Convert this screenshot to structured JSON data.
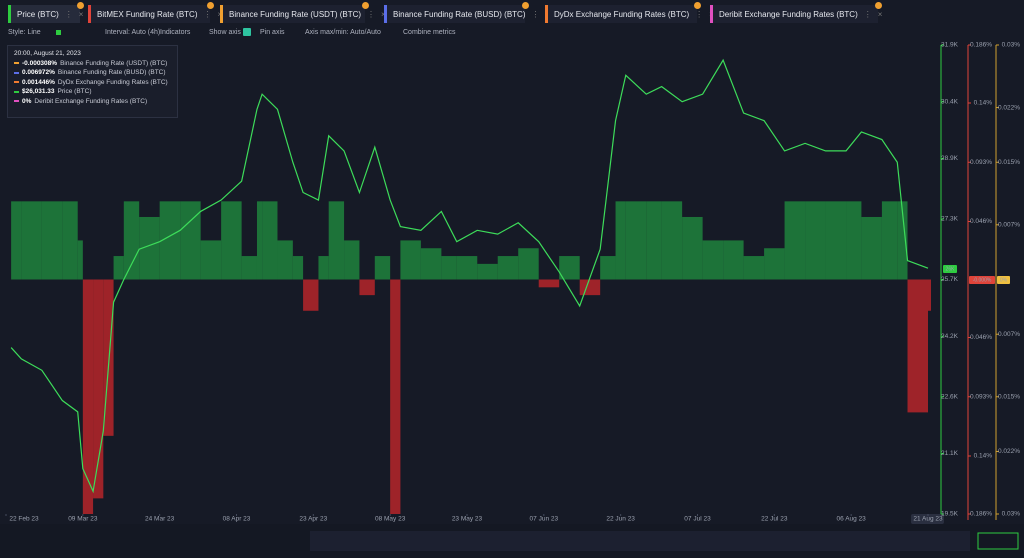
{
  "tabs": [
    {
      "label": "Price (BTC)",
      "color": "#2ecc40"
    },
    {
      "label": "BitMEX Funding Rate (BTC)",
      "color": "#e0443a"
    },
    {
      "label": "Binance Funding Rate (USDT) (BTC)",
      "color": "#f0a030"
    },
    {
      "label": "Binance Funding Rate (BUSD) (BTC)",
      "color": "#5b6ee8"
    },
    {
      "label": "DyDx Exchange Funding Rates (BTC)",
      "color": "#f07a30"
    },
    {
      "label": "Deribit Exchange Funding Rates (BTC)",
      "color": "#e050c0"
    }
  ],
  "toolbar": {
    "style": "Style: Line",
    "interval": "Interval: Auto (4h)",
    "indicators": "Indicators",
    "show_axis": "Show axis",
    "pin_axis": "Pin axis",
    "axis_range": "Axis max/min: Auto/Auto",
    "combine": "Combine metrics"
  },
  "tooltip": {
    "time": "20:00, August 21, 2023",
    "rows": [
      {
        "value": "-0.000308%",
        "name": "Binance Funding Rate (USDT) (BTC)",
        "color": "#f0a030"
      },
      {
        "value": "0.006972%",
        "name": "Binance Funding Rate (BUSD) (BTC)",
        "color": "#5b6ee8"
      },
      {
        "value": "0.001446%",
        "name": "DyDx Exchange Funding Rates (BTC)",
        "color": "#f07a30"
      },
      {
        "value": "$26,031.33",
        "name": "Price (BTC)",
        "color": "#2ecc40"
      },
      {
        "value": "0%",
        "name": "Deribit Exchange Funding Rates (BTC)",
        "color": "#e050c0"
      }
    ]
  },
  "badges": [
    {
      "label": "26K",
      "color": "#2ecc40"
    },
    {
      "label": "-0.000%",
      "color": "#e0443a"
    },
    {
      "label": "0%",
      "color": "#f0c040"
    }
  ],
  "chart_data": {
    "type": "line",
    "x": [
      "2023-02-23",
      "2023-02-25",
      "2023-03-01",
      "2023-03-05",
      "2023-03-08",
      "2023-03-09",
      "2023-03-11",
      "2023-03-13",
      "2023-03-15",
      "2023-03-17",
      "2023-03-20",
      "2023-03-24",
      "2023-03-28",
      "2023-04-01",
      "2023-04-05",
      "2023-04-09",
      "2023-04-12",
      "2023-04-13",
      "2023-04-16",
      "2023-04-19",
      "2023-04-21",
      "2023-04-24",
      "2023-04-26",
      "2023-04-29",
      "2023-05-02",
      "2023-05-05",
      "2023-05-08",
      "2023-05-10",
      "2023-05-14",
      "2023-05-18",
      "2023-05-21",
      "2023-05-25",
      "2023-05-29",
      "2023-06-02",
      "2023-06-06",
      "2023-06-10",
      "2023-06-14",
      "2023-06-18",
      "2023-06-21",
      "2023-06-23",
      "2023-06-27",
      "2023-06-30",
      "2023-07-04",
      "2023-07-08",
      "2023-07-12",
      "2023-07-16",
      "2023-07-20",
      "2023-07-24",
      "2023-07-28",
      "2023-08-01",
      "2023-08-05",
      "2023-08-08",
      "2023-08-12",
      "2023-08-15",
      "2023-08-17",
      "2023-08-21"
    ],
    "xlim": [
      "2023-02-22",
      "2023-08-21"
    ],
    "xticks": [
      {
        "value": "2023-02-22",
        "label": "22 Feb 23"
      },
      {
        "value": "2023-03-09",
        "label": "09 Mar 23"
      },
      {
        "value": "2023-03-24",
        "label": "24 Mar 23"
      },
      {
        "value": "2023-04-08",
        "label": "08 Apr 23"
      },
      {
        "value": "2023-04-23",
        "label": "23 Apr 23"
      },
      {
        "value": "2023-05-08",
        "label": "08 May 23"
      },
      {
        "value": "2023-05-23",
        "label": "23 May 23"
      },
      {
        "value": "2023-06-07",
        "label": "07 Jun 23"
      },
      {
        "value": "2023-06-22",
        "label": "22 Jun 23"
      },
      {
        "value": "2023-07-07",
        "label": "07 Jul 23"
      },
      {
        "value": "2023-07-22",
        "label": "22 Jul 23"
      },
      {
        "value": "2023-08-06",
        "label": "06 Aug 23"
      },
      {
        "value": "2023-08-21",
        "label": "21 Aug 23"
      }
    ],
    "ylim": [
      19500,
      31900
    ],
    "yticks": [
      {
        "value": 31900,
        "label": "31.9K"
      },
      {
        "value": 30400,
        "label": "30.4K"
      },
      {
        "value": 28900,
        "label": "28.9K"
      },
      {
        "value": 27300,
        "label": "27.3K"
      },
      {
        "value": 25700,
        "label": "25.7K"
      },
      {
        "value": 24200,
        "label": "24.2K"
      },
      {
        "value": 22600,
        "label": "22.6K"
      },
      {
        "value": 21100,
        "label": "21.1K"
      },
      {
        "value": 19500,
        "label": "19.5K"
      }
    ],
    "y2lim": [
      -0.03,
      0.03
    ],
    "y2ticks": [
      {
        "value": 0.03,
        "label": "0.03%"
      },
      {
        "value": 0.022,
        "label": "0.022%"
      },
      {
        "value": 0.015,
        "label": "0.015%"
      },
      {
        "value": 0.007,
        "label": "0.007%"
      },
      {
        "value": -0.007,
        "label": "0.007%"
      },
      {
        "value": -0.015,
        "label": "0.015%"
      },
      {
        "value": -0.022,
        "label": "0.022%"
      },
      {
        "value": -0.03,
        "label": "0.03%"
      }
    ],
    "y3lim": [
      -0.186,
      0.186
    ],
    "y3ticks": [
      {
        "value": 0.186,
        "label": "0.186%"
      },
      {
        "value": 0.14,
        "label": "0.14%"
      },
      {
        "value": 0.093,
        "label": "0.093%"
      },
      {
        "value": 0.046,
        "label": "0.046%"
      },
      {
        "value": -0.046,
        "label": "0.046%"
      },
      {
        "value": -0.093,
        "label": "0.093%"
      },
      {
        "value": -0.14,
        "label": "0.14%"
      },
      {
        "value": -0.186,
        "label": "0.186%"
      }
    ],
    "series": [
      {
        "name": "Price (BTC)",
        "color": "#3ddc5a",
        "values": [
          23900,
          23600,
          23300,
          22500,
          22200,
          20700,
          20100,
          21700,
          25100,
          25700,
          26500,
          26700,
          27000,
          27500,
          27800,
          28300,
          30200,
          30600,
          30200,
          28800,
          28000,
          27800,
          29500,
          29100,
          28000,
          29200,
          27800,
          27100,
          27000,
          27500,
          26700,
          27000,
          26900,
          27200,
          26700,
          25900,
          25000,
          26500,
          29900,
          31100,
          30600,
          30800,
          30400,
          30600,
          31500,
          30100,
          29900,
          29100,
          29300,
          29100,
          29100,
          29600,
          29400,
          28800,
          26200,
          26000
        ]
      },
      {
        "name": "Binance Funding Rate (USDT) (BTC)",
        "type": "bar",
        "axis": "y2",
        "color": "#1f8a3e",
        "negative_color": "#c0262b",
        "values": [
          0.01,
          0.01,
          0.01,
          0.01,
          0.005,
          -0.03,
          -0.028,
          -0.02,
          0.003,
          0.01,
          0.008,
          0.01,
          0.01,
          0.005,
          0.01,
          0.003,
          0.01,
          0.01,
          0.005,
          0.003,
          -0.004,
          0.003,
          0.01,
          0.005,
          -0.002,
          0.003,
          -0.03,
          0.005,
          0.004,
          0.003,
          0.003,
          0.002,
          0.003,
          0.004,
          -0.001,
          0.003,
          -0.002,
          0.003,
          0.01,
          0.01,
          0.01,
          0.01,
          0.008,
          0.005,
          0.005,
          0.003,
          0.004,
          0.01,
          0.01,
          0.01,
          0.01,
          0.008,
          0.01,
          0.01,
          -0.017,
          -0.004
        ]
      }
    ]
  }
}
